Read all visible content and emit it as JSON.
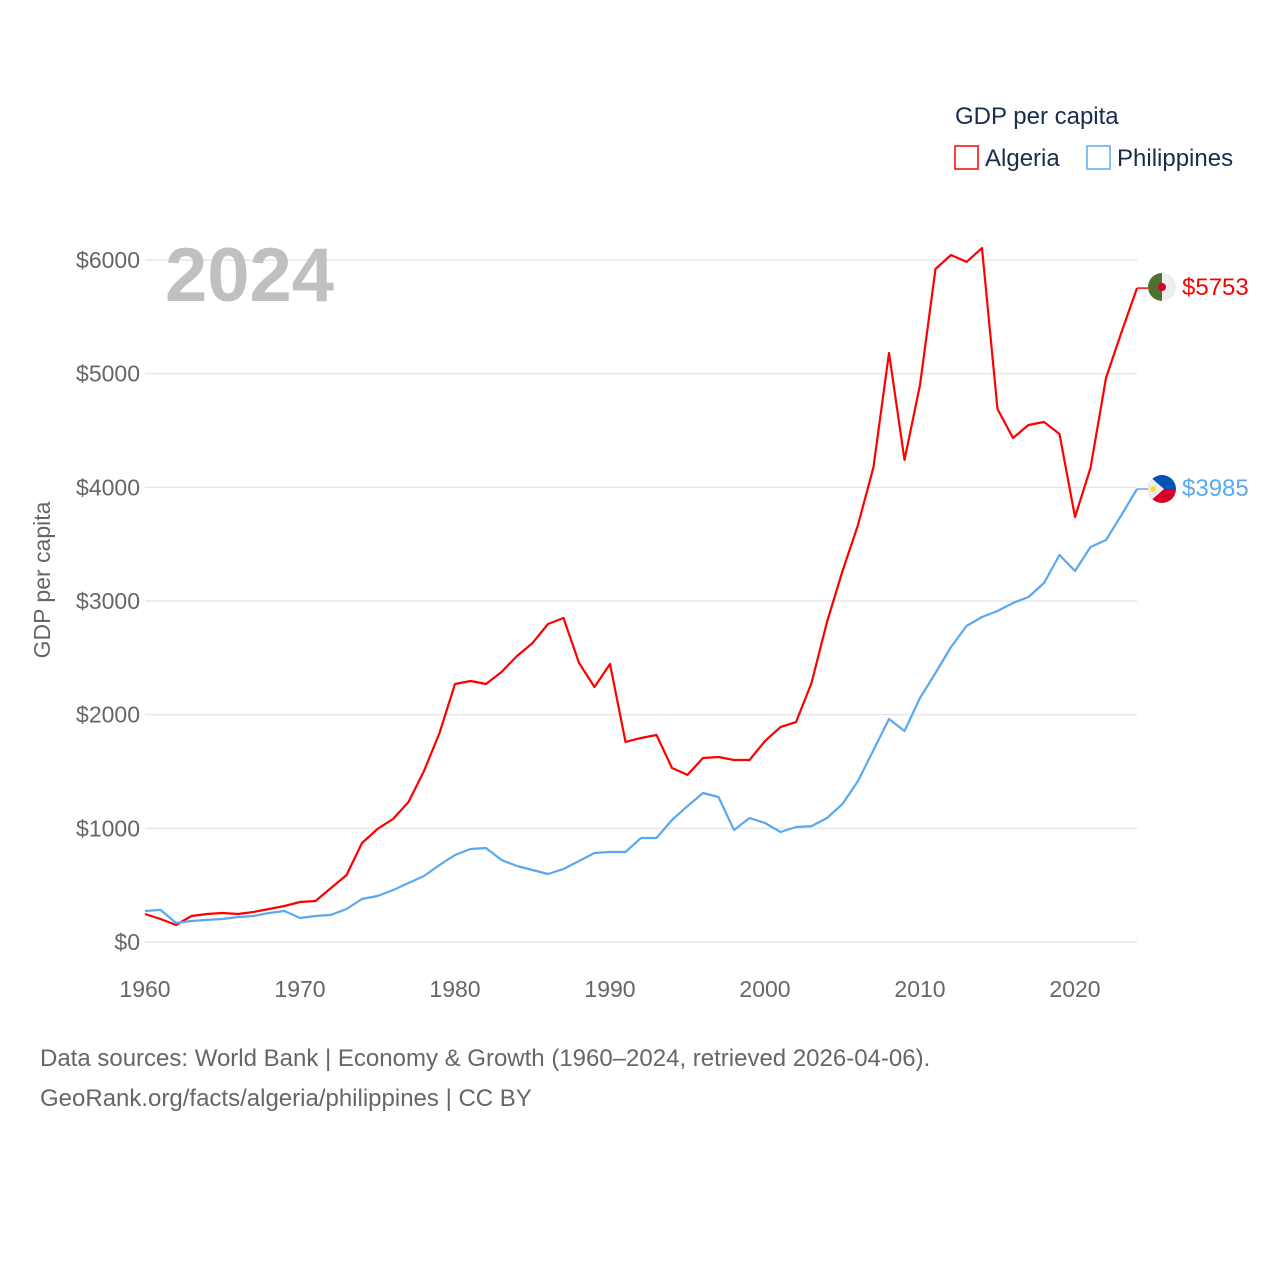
{
  "chart_data": {
    "type": "line",
    "title": "GDP per capita",
    "ylabel": "GDP per capita",
    "xlabel": "",
    "year_label": "2024",
    "xlim": [
      1960,
      2024
    ],
    "ylim": [
      0,
      6000
    ],
    "x_ticks": [
      1960,
      1970,
      1980,
      1990,
      2000,
      2010,
      2020
    ],
    "x_tick_labels": [
      "1960",
      "1970",
      "1980",
      "1990",
      "2000",
      "2010",
      "2020"
    ],
    "y_ticks": [
      0,
      1000,
      2000,
      3000,
      4000,
      5000,
      6000
    ],
    "y_tick_labels": [
      "$0",
      "$1000",
      "$2000",
      "$3000",
      "$4000",
      "$5000",
      "$6000"
    ],
    "grid": true,
    "legend_position": "top-right",
    "x": [
      1960,
      1961,
      1962,
      1963,
      1964,
      1965,
      1966,
      1967,
      1968,
      1969,
      1970,
      1971,
      1972,
      1973,
      1974,
      1975,
      1976,
      1977,
      1978,
      1979,
      1980,
      1981,
      1982,
      1983,
      1984,
      1985,
      1986,
      1987,
      1988,
      1989,
      1990,
      1991,
      1992,
      1993,
      1994,
      1995,
      1996,
      1997,
      1998,
      1999,
      2000,
      2001,
      2002,
      2003,
      2004,
      2005,
      2006,
      2007,
      2008,
      2009,
      2010,
      2011,
      2012,
      2013,
      2014,
      2015,
      2016,
      2017,
      2018,
      2019,
      2020,
      2021,
      2022,
      2023,
      2024
    ],
    "series": [
      {
        "name": "Algeria",
        "color": "#ff0000",
        "end_label": "$5753",
        "flag": "algeria-flag",
        "values": [
          246,
          202,
          150,
          229,
          246,
          255,
          246,
          264,
          290,
          317,
          352,
          361,
          475,
          589,
          871,
          994,
          1082,
          1232,
          1504,
          1839,
          2270,
          2296,
          2270,
          2375,
          2516,
          2630,
          2798,
          2850,
          2455,
          2243,
          2446,
          1760,
          1795,
          1821,
          1531,
          1470,
          1619,
          1628,
          1601,
          1601,
          1768,
          1891,
          1935,
          2279,
          2815,
          3264,
          3669,
          4179,
          5182,
          4241,
          4900,
          5921,
          6044,
          5983,
          6105,
          4689,
          4434,
          4548,
          4575,
          4469,
          3739,
          4170,
          4962,
          5366,
          5753
        ]
      },
      {
        "name": "Philippines",
        "color": "#5aa9f0",
        "end_label": "$3985",
        "flag": "philippines-flag",
        "values": [
          273,
          282,
          167,
          185,
          194,
          202,
          220,
          229,
          255,
          273,
          211,
          229,
          238,
          290,
          378,
          405,
          457,
          519,
          581,
          677,
          765,
          818,
          827,
          721,
          669,
          633,
          598,
          642,
          713,
          783,
          792,
          792,
          915,
          915,
          1073,
          1196,
          1311,
          1276,
          985,
          1091,
          1047,
          968,
          1012,
          1020,
          1091,
          1214,
          1416,
          1689,
          1962,
          1856,
          2147,
          2367,
          2595,
          2780,
          2859,
          2912,
          2982,
          3035,
          3158,
          3405,
          3264,
          3475,
          3537,
          3757,
          3985
        ]
      }
    ]
  },
  "footer": {
    "line1": "Data sources: World Bank | Economy & Growth (1960–2024, retrieved 2026-04-06).",
    "line2": "GeoRank.org/facts/algeria/philippines | CC BY"
  }
}
